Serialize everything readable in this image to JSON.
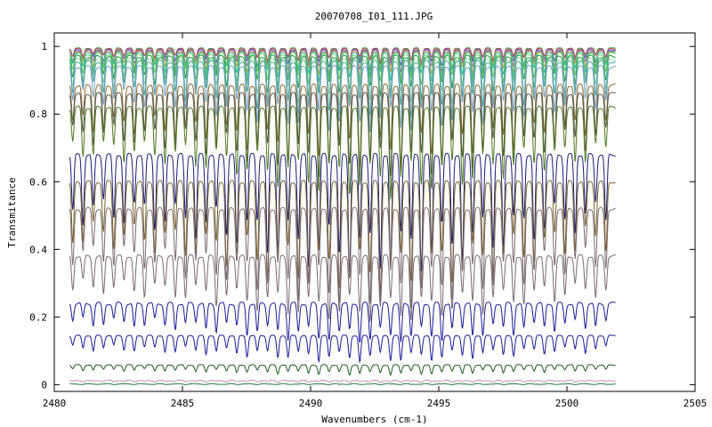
{
  "chart_data": {
    "type": "line",
    "title": "20070708_I01_111.JPG",
    "xlabel": "Wavenumbers (cm-1)",
    "ylabel": "Transmitance",
    "xlim": [
      2480,
      2505
    ],
    "ylim": [
      -0.02,
      1.04
    ],
    "x_ticks": [
      2480,
      2485,
      2490,
      2495,
      2500,
      2505
    ],
    "y_ticks": [
      0,
      0.2,
      0.4,
      0.6,
      0.8,
      1
    ],
    "x_tick_labels": [
      "2480",
      "2485",
      "2490",
      "2495",
      "2500",
      "2505"
    ],
    "y_tick_labels": [
      "0",
      "0.2",
      "0.4",
      "0.6",
      "0.8",
      "1"
    ],
    "grid": false,
    "legend": "none",
    "x_range": [
      2480.6,
      2501.9
    ],
    "line_spacing_cm1": 0.4,
    "series": [
      {
        "color": "#33aa44",
        "baseline": 0.995,
        "depth": 0.05
      },
      {
        "color": "#cc4444",
        "baseline": 0.993,
        "depth": 0.04
      },
      {
        "color": "#3366cc",
        "baseline": 0.99,
        "depth": 0.06
      },
      {
        "color": "#aa66cc",
        "baseline": 0.988,
        "depth": 0.07
      },
      {
        "color": "#dd9933",
        "baseline": 0.985,
        "depth": 0.08
      },
      {
        "color": "#22bbaa",
        "baseline": 0.982,
        "depth": 0.09
      },
      {
        "color": "#66cc66",
        "baseline": 0.978,
        "depth": 0.11
      },
      {
        "color": "#1a9a3a",
        "baseline": 0.97,
        "depth": 0.13
      },
      {
        "color": "#99ccaa",
        "baseline": 0.962,
        "depth": 0.15
      },
      {
        "color": "#44aa99",
        "baseline": 0.955,
        "depth": 0.17
      },
      {
        "color": "#6fa0c0",
        "baseline": 0.94,
        "depth": 0.2
      },
      {
        "color": "#8a6a2a",
        "baseline": 0.885,
        "depth": 0.25
      },
      {
        "color": "#555555",
        "baseline": 0.86,
        "depth": 0.26
      },
      {
        "color": "#4e7a1e",
        "baseline": 0.82,
        "depth": 0.27
      },
      {
        "color": "#1a1a7a",
        "baseline": 0.68,
        "depth": 0.36
      },
      {
        "color": "#7a6228",
        "baseline": 0.6,
        "depth": 0.34
      },
      {
        "color": "#7a6a70",
        "baseline": 0.52,
        "depth": 0.3
      },
      {
        "color": "#7a6a70",
        "baseline": 0.38,
        "depth": 0.2
      },
      {
        "color": "#1a1a9a",
        "baseline": 0.24,
        "depth": 0.12
      },
      {
        "color": "#1a1a9a",
        "baseline": 0.145,
        "depth": 0.08
      },
      {
        "color": "#1a5a1a",
        "baseline": 0.058,
        "depth": 0.03
      },
      {
        "color": "#c090b0",
        "baseline": 0.012,
        "depth": 0.006
      },
      {
        "color": "#1a7a3a",
        "baseline": 0.002,
        "depth": 0.002
      }
    ]
  }
}
